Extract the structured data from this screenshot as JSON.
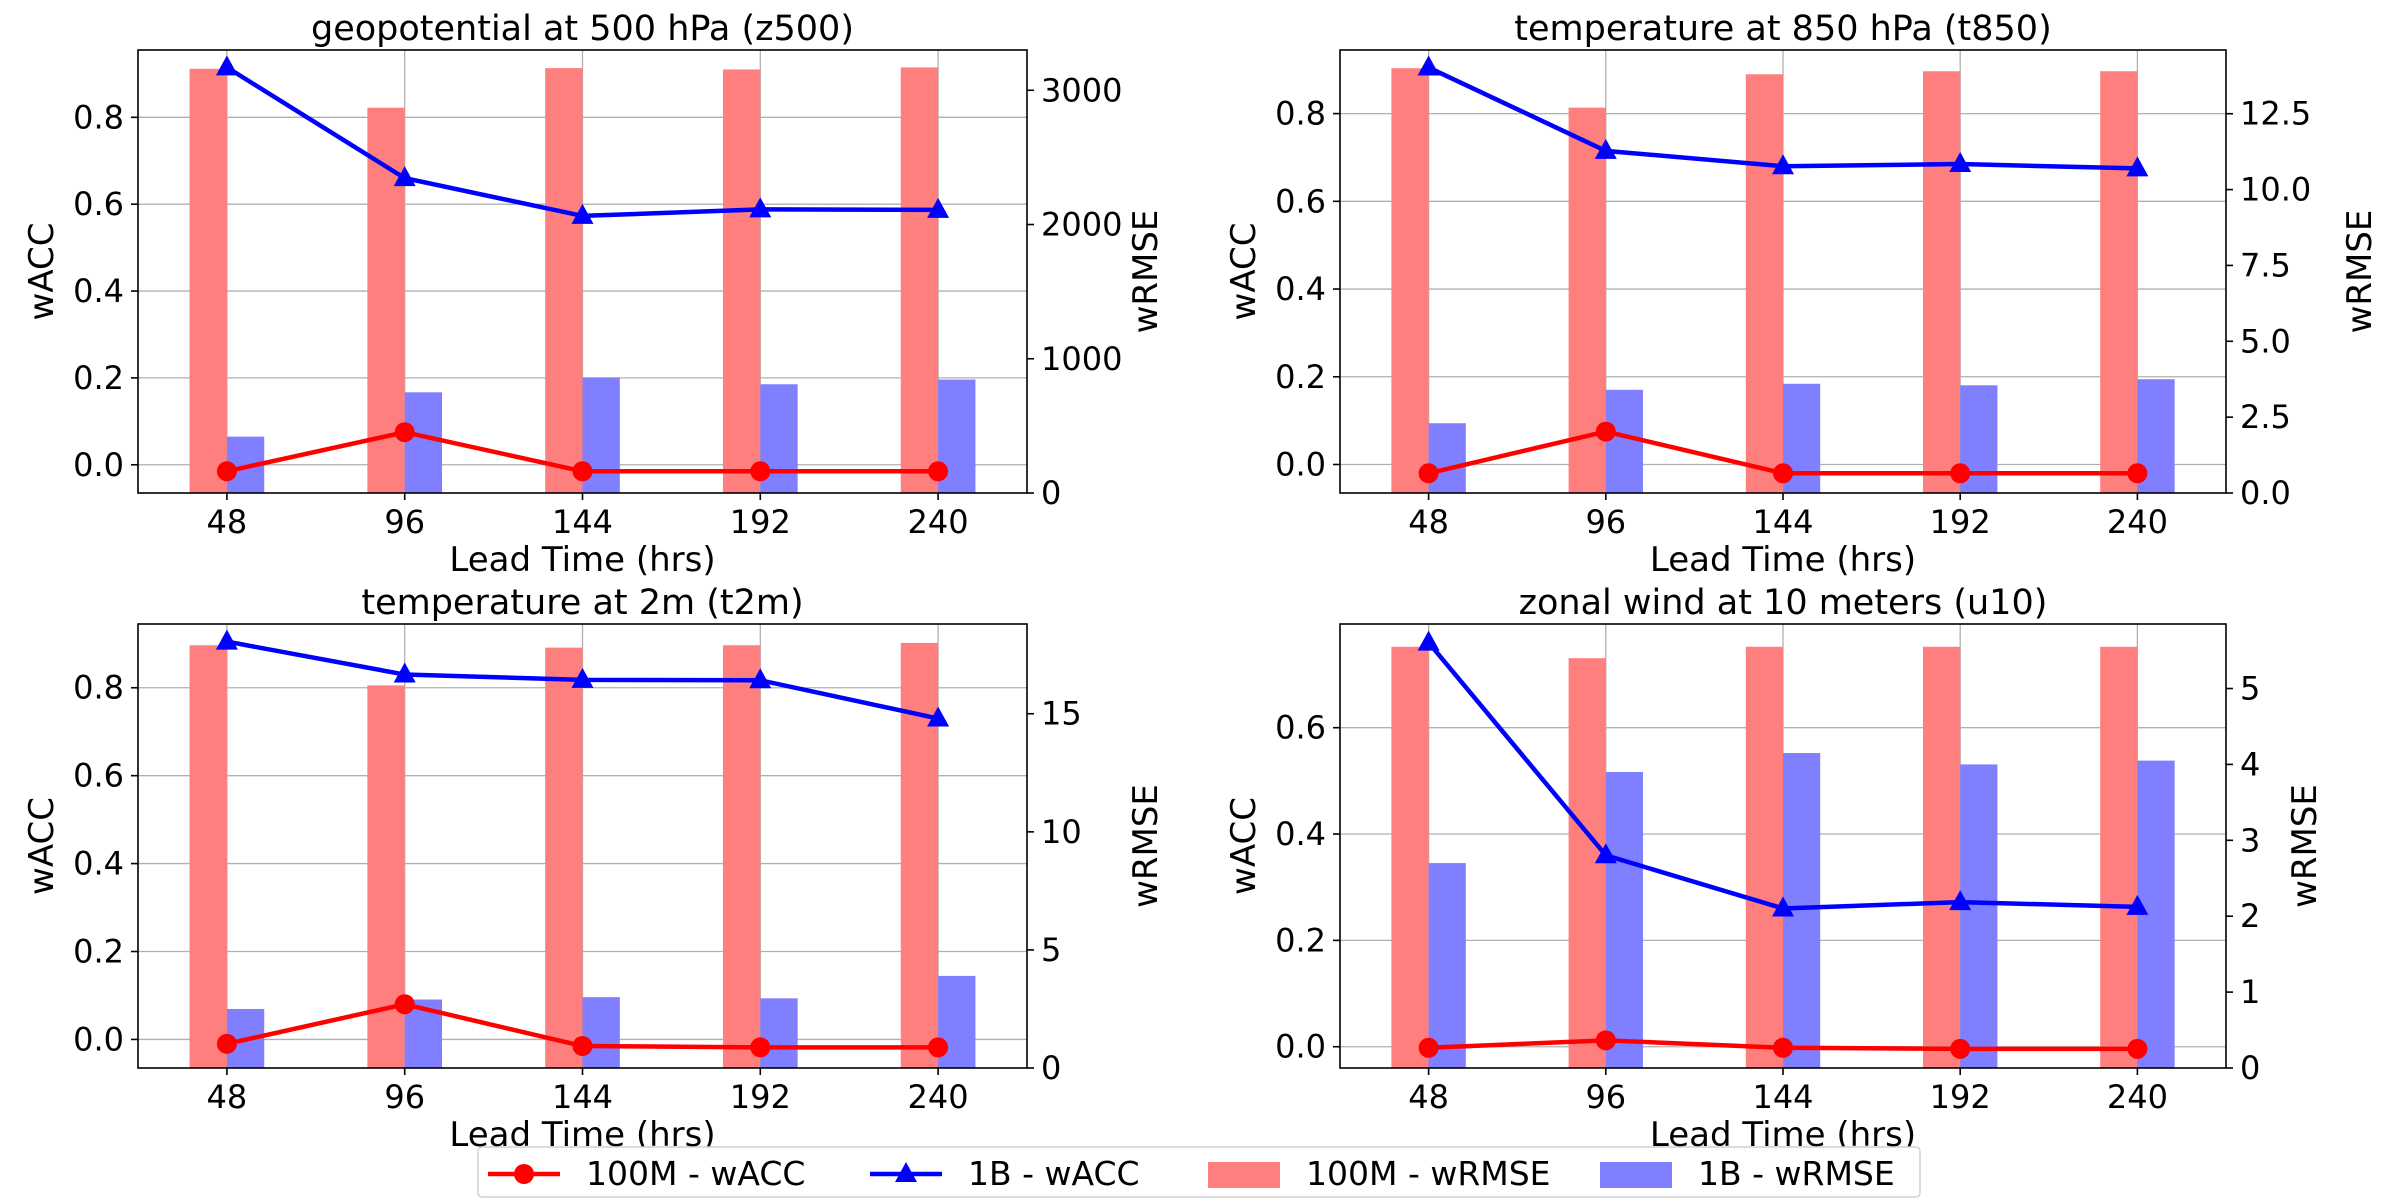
{
  "chart_data": [
    {
      "type": "bar+line",
      "title": "geopotential at 500 hPa (z500)",
      "xlabel": "Lead Time (hrs)",
      "ylabel_left": "wACC",
      "ylabel_right": "wRMSE",
      "categories": [
        "48",
        "96",
        "144",
        "192",
        "240"
      ],
      "ylim_left": [
        -0.065,
        0.955
      ],
      "yticks_left": [
        "0.0",
        "0.2",
        "0.4",
        "0.6",
        "0.8"
      ],
      "ylim_right": [
        0,
        3300
      ],
      "yticks_right": [
        "0",
        "1000",
        "2000",
        "3000"
      ],
      "line_series": [
        {
          "name": "100M - wACC",
          "values": [
            -0.015,
            0.075,
            -0.015,
            -0.015,
            -0.015
          ]
        },
        {
          "name": "1B - wACC",
          "values": [
            0.915,
            0.66,
            0.573,
            0.588,
            0.587
          ]
        }
      ],
      "bar_series": [
        {
          "name": "100M - wRMSE",
          "values": [
            3160,
            2870,
            3165,
            3155,
            3170
          ]
        },
        {
          "name": "1B - wRMSE",
          "values": [
            420,
            750,
            860,
            810,
            845
          ]
        }
      ]
    },
    {
      "type": "bar+line",
      "title": "temperature at 850 hPa (t850)",
      "xlabel": "Lead Time (hrs)",
      "ylabel_left": "wACC",
      "ylabel_right": "wRMSE",
      "categories": [
        "48",
        "96",
        "144",
        "192",
        "240"
      ],
      "ylim_left": [
        -0.065,
        0.945
      ],
      "yticks_left": [
        "0.0",
        "0.2",
        "0.4",
        "0.6",
        "0.8"
      ],
      "ylim_right": [
        0,
        14.6
      ],
      "yticks_right": [
        "0.0",
        "2.5",
        "5.0",
        "7.5",
        "10.0",
        "12.5"
      ],
      "line_series": [
        {
          "name": "100M - wACC",
          "values": [
            -0.02,
            0.075,
            -0.02,
            -0.02,
            -0.02
          ]
        },
        {
          "name": "1B - wACC",
          "values": [
            0.905,
            0.715,
            0.68,
            0.685,
            0.675
          ]
        }
      ],
      "bar_series": [
        {
          "name": "100M - wRMSE",
          "values": [
            14.0,
            12.7,
            13.8,
            13.9,
            13.9
          ]
        },
        {
          "name": "1B - wRMSE",
          "values": [
            2.3,
            3.4,
            3.6,
            3.55,
            3.75
          ]
        }
      ]
    },
    {
      "type": "bar+line",
      "title": "temperature at 2m (t2m)",
      "xlabel": "Lead Time (hrs)",
      "ylabel_left": "wACC",
      "ylabel_right": "wRMSE",
      "categories": [
        "48",
        "96",
        "144",
        "192",
        "240"
      ],
      "ylim_left": [
        -0.065,
        0.945
      ],
      "yticks_left": [
        "0.0",
        "0.2",
        "0.4",
        "0.6",
        "0.8"
      ],
      "ylim_right": [
        0,
        18.8
      ],
      "yticks_right": [
        "0",
        "5",
        "10",
        "15"
      ],
      "line_series": [
        {
          "name": "100M - wACC",
          "values": [
            -0.01,
            0.08,
            -0.015,
            -0.018,
            -0.018
          ]
        },
        {
          "name": "1B - wACC",
          "values": [
            0.905,
            0.83,
            0.818,
            0.817,
            0.73
          ]
        }
      ],
      "bar_series": [
        {
          "name": "100M - wRMSE",
          "values": [
            17.9,
            16.2,
            17.8,
            17.9,
            18.0
          ]
        },
        {
          "name": "1B - wRMSE",
          "values": [
            2.5,
            2.9,
            3.0,
            2.95,
            3.9
          ]
        }
      ]
    },
    {
      "type": "bar+line",
      "title": "zonal wind at 10 meters (u10)",
      "xlabel": "Lead Time (hrs)",
      "ylabel_left": "wACC",
      "ylabel_right": "wRMSE",
      "categories": [
        "48",
        "96",
        "144",
        "192",
        "240"
      ],
      "ylim_left": [
        -0.04,
        0.795
      ],
      "yticks_left": [
        "0.0",
        "0.2",
        "0.4",
        "0.6"
      ],
      "ylim_right": [
        0,
        5.85
      ],
      "yticks_right": [
        "0",
        "1",
        "2",
        "3",
        "4",
        "5"
      ],
      "line_series": [
        {
          "name": "100M - wACC",
          "values": [
            -0.002,
            0.012,
            -0.002,
            -0.004,
            -0.004
          ]
        },
        {
          "name": "1B - wACC",
          "values": [
            0.76,
            0.36,
            0.26,
            0.272,
            0.263
          ]
        }
      ],
      "bar_series": [
        {
          "name": "100M - wRMSE",
          "values": [
            5.55,
            5.4,
            5.55,
            5.55,
            5.55
          ]
        },
        {
          "name": "1B - wRMSE",
          "values": [
            2.7,
            3.9,
            4.15,
            4.0,
            4.05
          ]
        }
      ]
    }
  ],
  "legend": {
    "position": "bottom-center",
    "items": [
      {
        "label": "100M - wACC",
        "kind": "line-circle",
        "color": "#ff0000"
      },
      {
        "label": "1B - wACC",
        "kind": "line-triangle",
        "color": "#0000ff"
      },
      {
        "label": "100M - wRMSE",
        "kind": "bar",
        "color": "#ff7f7f"
      },
      {
        "label": "1B - wRMSE",
        "kind": "bar",
        "color": "#7f7fff"
      }
    ]
  },
  "colors": {
    "line_100M": "#ff0000",
    "line_1B": "#0000ff",
    "bar_100M": "#ff7f7f",
    "bar_1B": "#7f7fff",
    "grid": "#b0b0b0"
  }
}
